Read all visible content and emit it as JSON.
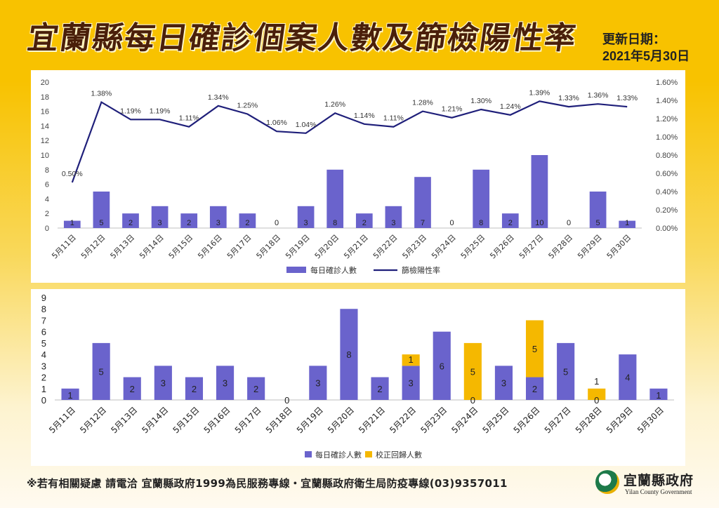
{
  "header": {
    "title": "宜蘭縣每日確診個案人數及篩檢陽性率",
    "update_label": "更新日期：",
    "update_date": "2021年5月30日"
  },
  "footer": {
    "text": "※若有相關疑慮 請電洽  宜蘭縣政府1999為民服務專線・宜蘭縣政府衛生局防疫專線(03)9357011"
  },
  "logo": {
    "name": "宜蘭縣政府",
    "english": "Yilan County Government",
    "icon": "yilan-county-emblem"
  },
  "colors": {
    "bar": "#6a63cc",
    "line": "#1f1f7a",
    "corrected": "#f5b800"
  },
  "chart_data": [
    {
      "type": "bar",
      "categories": [
        "5月11日",
        "5月12日",
        "5月13日",
        "5月14日",
        "5月15日",
        "5月16日",
        "5月17日",
        "5月18日",
        "5月19日",
        "5月20日",
        "5月21日",
        "5月22日",
        "5月23日",
        "5月24日",
        "5月25日",
        "5月26日",
        "5月27日",
        "5月28日",
        "5月29日",
        "5月30日"
      ],
      "series": [
        {
          "name": "每日確診人數",
          "type": "bar",
          "values": [
            1,
            5,
            2,
            3,
            2,
            3,
            2,
            0,
            3,
            8,
            2,
            3,
            7,
            0,
            8,
            2,
            10,
            0,
            5,
            1
          ]
        },
        {
          "name": "篩檢陽性率",
          "type": "line",
          "axis": "right",
          "values": [
            0.5,
            1.38,
            1.19,
            1.19,
            1.11,
            1.34,
            1.25,
            1.06,
            1.04,
            1.26,
            1.14,
            1.11,
            1.28,
            1.21,
            1.3,
            1.24,
            1.39,
            1.33,
            1.36,
            1.33
          ],
          "labels": [
            "0.50%",
            "1.38%",
            "1.19%",
            "1.19%",
            "1.11%",
            "1.34%",
            "1.25%",
            "1.06%",
            "1.04%",
            "1.26%",
            "1.14%",
            "1.11%",
            "1.28%",
            "1.21%",
            "1.30%",
            "1.24%",
            "1.39%",
            "1.33%",
            "1.36%",
            "1.33%"
          ]
        }
      ],
      "ylim": [
        0,
        20
      ],
      "yticks": [
        "0",
        "2",
        "4",
        "6",
        "8",
        "10",
        "12",
        "14",
        "16",
        "18",
        "20"
      ],
      "y2lim": [
        0,
        1.6
      ],
      "y2ticks": [
        "0.00%",
        "0.20%",
        "0.40%",
        "0.60%",
        "0.80%",
        "1.00%",
        "1.20%",
        "1.40%",
        "1.60%"
      ],
      "legend": "bottom",
      "grid": false
    },
    {
      "type": "bar",
      "stacked": true,
      "categories": [
        "5月11日",
        "5月12日",
        "5月13日",
        "5月14日",
        "5月15日",
        "5月16日",
        "5月17日",
        "5月18日",
        "5月19日",
        "5月20日",
        "5月21日",
        "5月22日",
        "5月23日",
        "5月24日",
        "5月25日",
        "5月26日",
        "5月27日",
        "5月28日",
        "5月29日",
        "5月30日"
      ],
      "series": [
        {
          "name": "每日確診人數",
          "values": [
            1,
            5,
            2,
            3,
            2,
            3,
            2,
            0,
            3,
            8,
            2,
            3,
            6,
            0,
            3,
            2,
            5,
            0,
            4,
            1
          ]
        },
        {
          "name": "校正回歸人數",
          "values": [
            0,
            0,
            0,
            0,
            0,
            0,
            0,
            0,
            0,
            0,
            0,
            1,
            0,
            5,
            0,
            5,
            0,
            1,
            0,
            0
          ]
        }
      ],
      "ylim": [
        0,
        9
      ],
      "yticks": [
        "0",
        "1",
        "2",
        "3",
        "4",
        "5",
        "6",
        "7",
        "8",
        "9"
      ],
      "legend": "bottom",
      "grid": false
    }
  ]
}
